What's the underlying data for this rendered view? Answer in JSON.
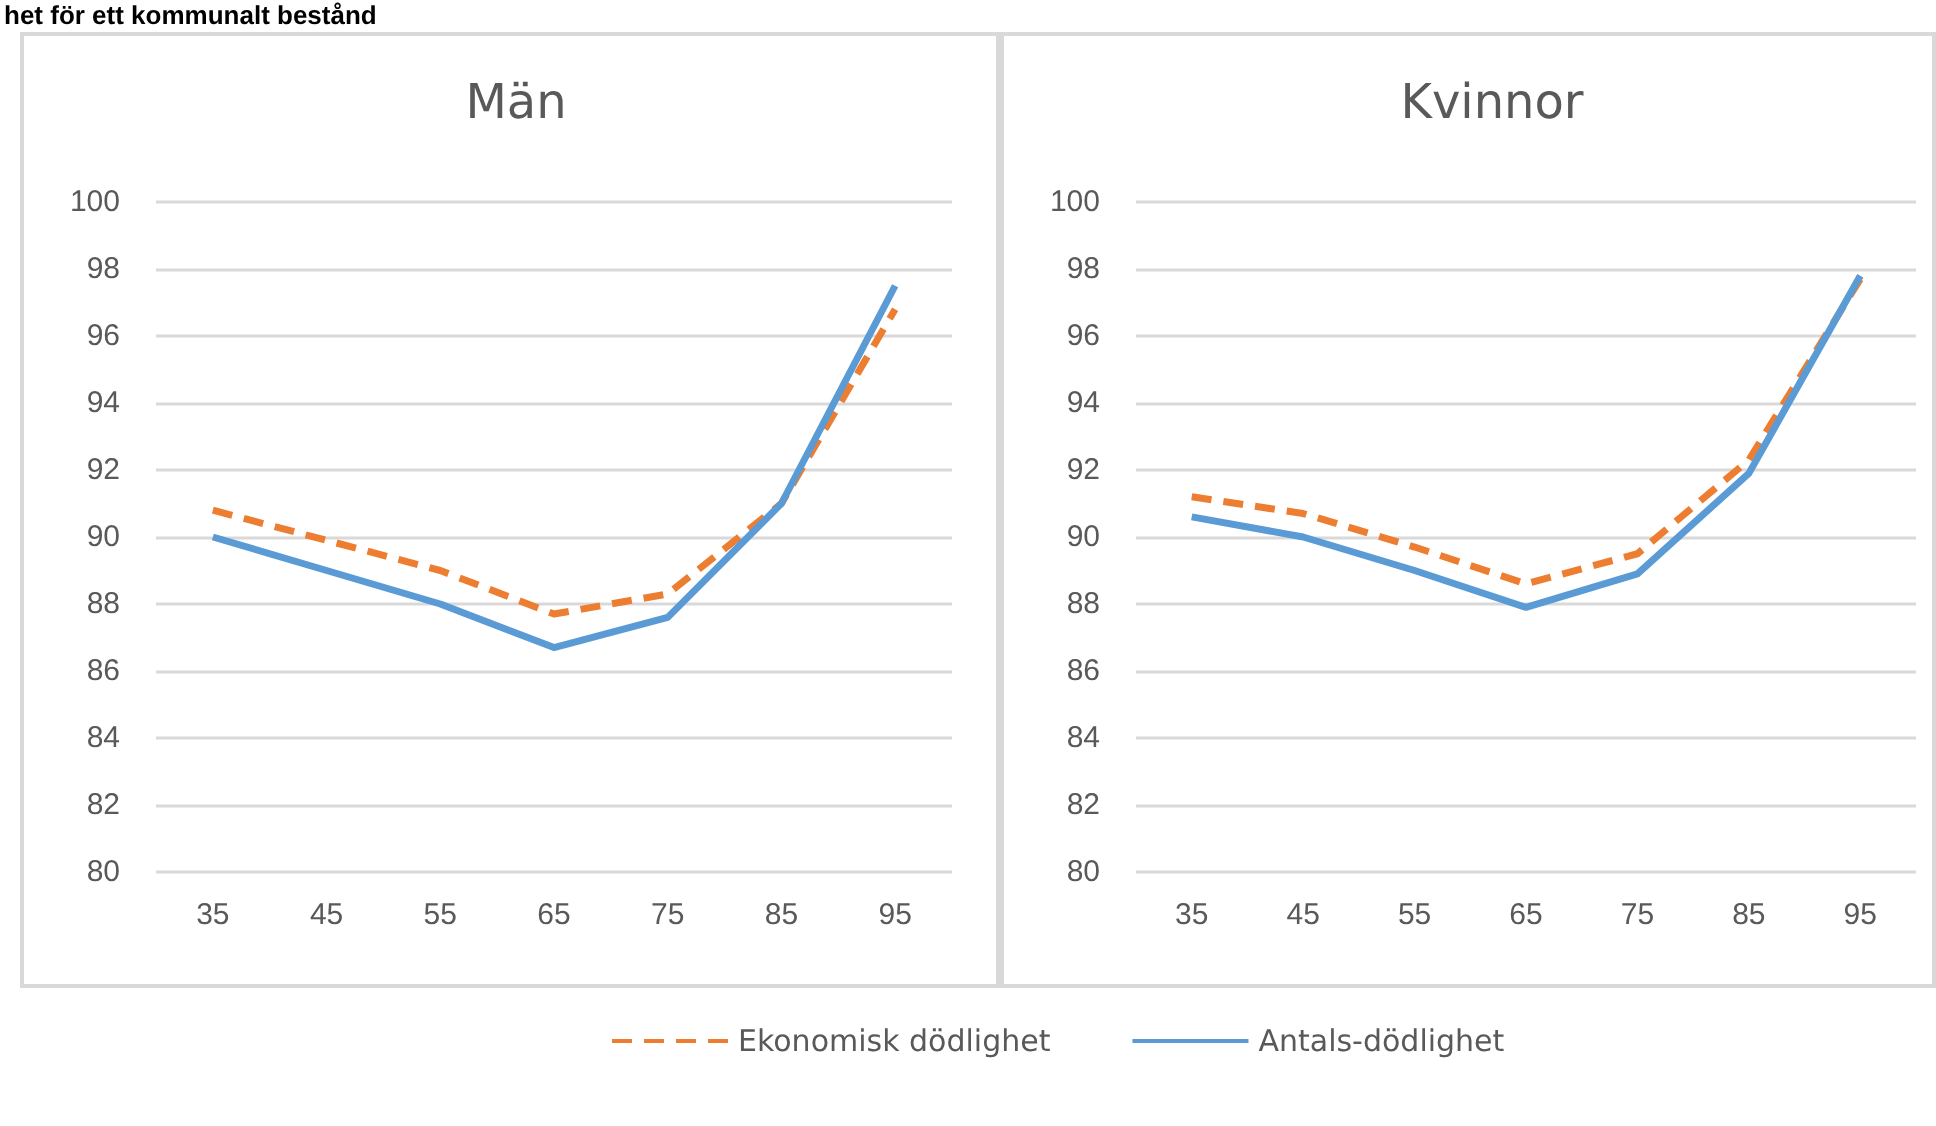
{
  "chart_data": [
    {
      "type": "line",
      "title": "Män",
      "annotations": [
        "het för ett kommunalt bestånd"
      ],
      "categories": [
        "35",
        "45",
        "55",
        "65",
        "75",
        "85",
        "95"
      ],
      "series": [
        {
          "color": "#ed7d31",
          "line_style": "dashed",
          "values": [
            90.8,
            89.9,
            89.0,
            87.7,
            88.3,
            91.0,
            96.8
          ]
        },
        {
          "color": "#5b9bd5",
          "line_style": "solid",
          "values": [
            90.0,
            89.0,
            88.0,
            86.7,
            87.6,
            91.0,
            97.5
          ]
        }
      ],
      "ylim": [
        80,
        100
      ],
      "yticks": [
        80,
        82,
        84,
        86,
        88,
        90,
        92,
        94,
        96,
        98,
        100
      ],
      "grid": "y",
      "legend": false,
      "marker": "none"
    },
    {
      "type": "line",
      "title": "Kvinnor",
      "categories": [
        "35",
        "45",
        "55",
        "65",
        "75",
        "85",
        "95"
      ],
      "series": [
        {
          "name": "Ekonomisk dödlighet",
          "color": "#ed7d31",
          "line_style": "dashed",
          "values": [
            91.2,
            90.7,
            89.7,
            88.6,
            89.5,
            92.3,
            97.7
          ]
        },
        {
          "name": "Antals-dödlighet",
          "color": "#5b9bd5",
          "line_style": "solid",
          "values": [
            90.6,
            90.0,
            89.0,
            87.9,
            88.9,
            91.9,
            97.8
          ]
        }
      ],
      "ylim": [
        80,
        100
      ],
      "yticks": [
        80,
        82,
        84,
        86,
        88,
        90,
        92,
        94,
        96,
        98,
        100
      ],
      "grid": "y",
      "legend": "bottom",
      "marker": "none"
    }
  ]
}
